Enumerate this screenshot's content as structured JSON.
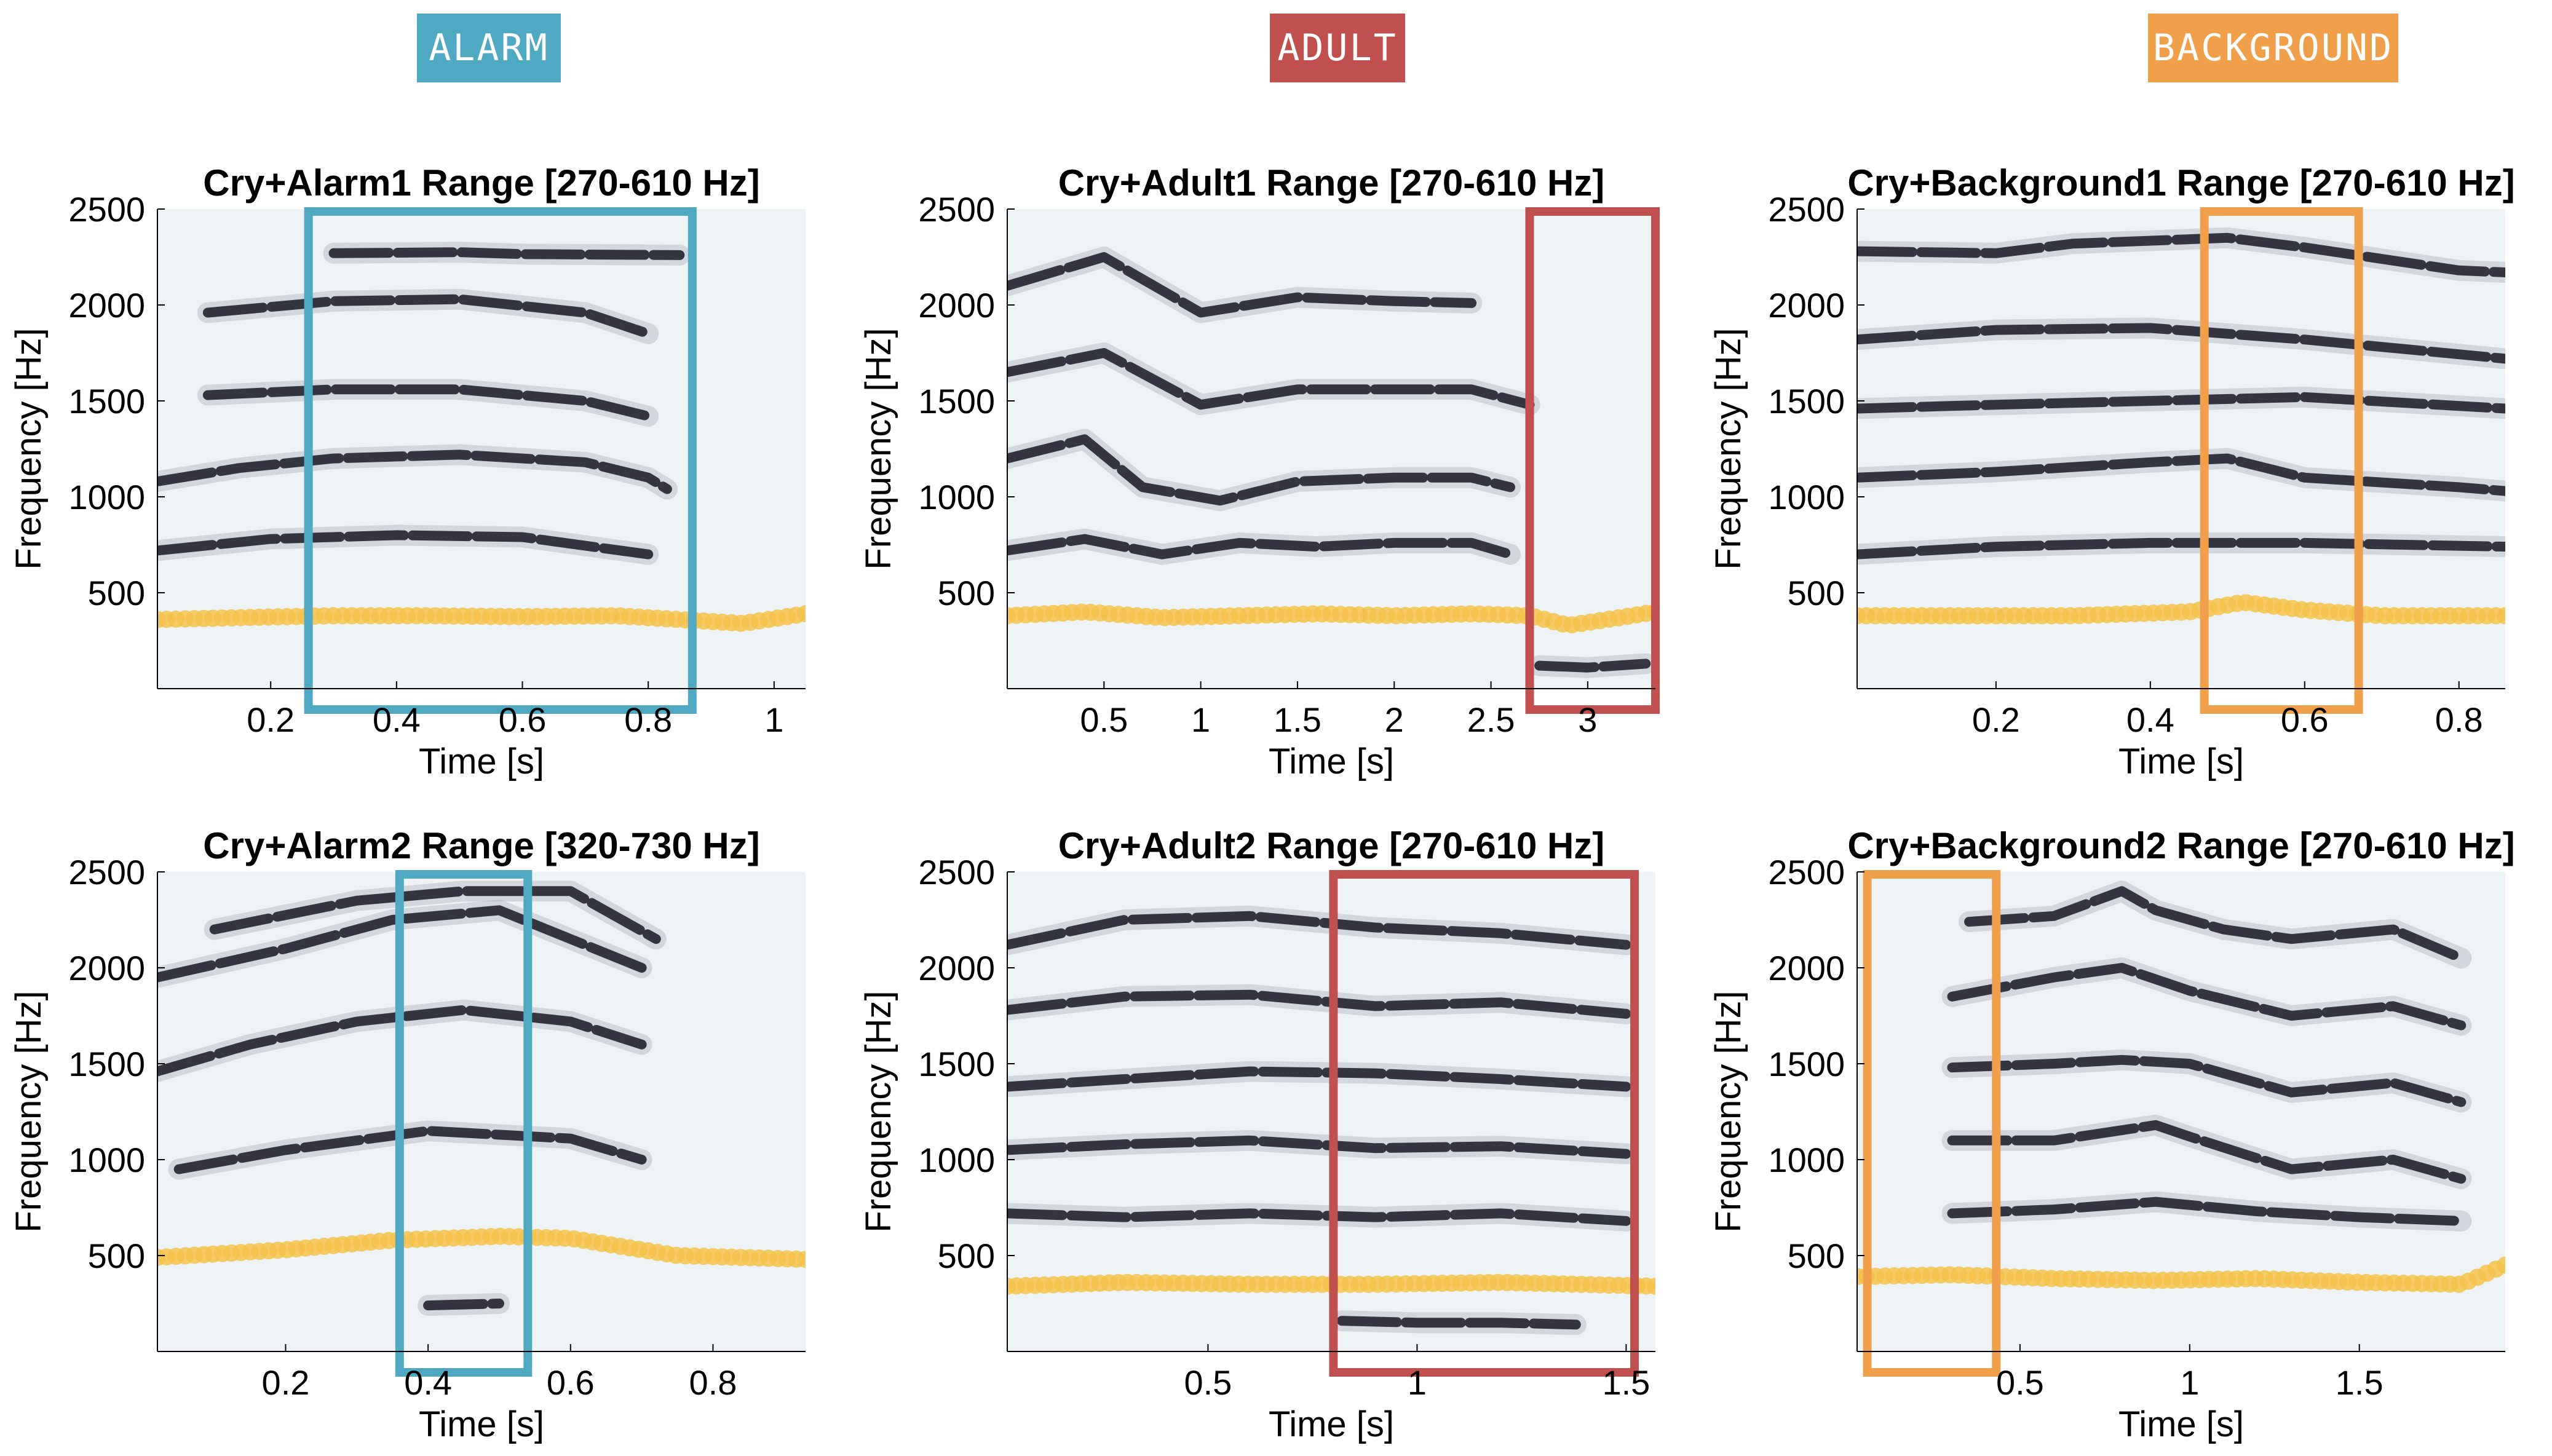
{
  "category_labels": [
    {
      "text": "ALARM",
      "color": "#4fa9c2"
    },
    {
      "text": "ADULT",
      "color": "#c0504d"
    },
    {
      "text": "BACKGROUND",
      "color": "#f0a04b"
    }
  ],
  "colors": {
    "f0_track": "#f3c24a",
    "harmonic": "#1a1826",
    "axis": "#000000"
  },
  "chart_data": [
    {
      "type": "spectrogram",
      "title": "Cry+Alarm1 Range [270-610 Hz]",
      "xlabel": "Time [s]",
      "ylabel": "Frequency [Hz]",
      "xlim": [
        0.02,
        1.05
      ],
      "ylim": [
        0,
        2500
      ],
      "xticks": [
        0.2,
        0.4,
        0.6,
        0.8,
        1
      ],
      "yticks": [
        500,
        1000,
        1500,
        2000,
        2500
      ],
      "highlight": {
        "category": "ALARM",
        "x_range": [
          0.26,
          0.87
        ],
        "color": "#4fa9c2"
      },
      "f0_track": {
        "x": [
          0.02,
          0.15,
          0.3,
          0.45,
          0.6,
          0.75,
          0.85,
          0.95,
          1.05
        ],
        "y": [
          360,
          370,
          380,
          380,
          375,
          380,
          360,
          340,
          390
        ]
      },
      "harmonics": [
        {
          "x": [
            0.02,
            0.2,
            0.4,
            0.6,
            0.8
          ],
          "y": [
            720,
            780,
            800,
            790,
            700
          ]
        },
        {
          "x": [
            0.02,
            0.15,
            0.3,
            0.5,
            0.7,
            0.8,
            0.83
          ],
          "y": [
            1080,
            1150,
            1200,
            1220,
            1180,
            1100,
            1040
          ]
        },
        {
          "x": [
            0.1,
            0.3,
            0.5,
            0.7,
            0.8
          ],
          "y": [
            1530,
            1560,
            1560,
            1500,
            1420
          ]
        },
        {
          "x": [
            0.1,
            0.3,
            0.5,
            0.7,
            0.8
          ],
          "y": [
            1960,
            2020,
            2030,
            1960,
            1850
          ]
        },
        {
          "x": [
            0.3,
            0.5,
            0.6,
            0.85
          ],
          "y": [
            2270,
            2275,
            2265,
            2260
          ]
        }
      ]
    },
    {
      "type": "spectrogram",
      "title": "Cry+Adult1 Range [270-610 Hz]",
      "xlabel": "Time [s]",
      "ylabel": "Frequency [Hz]",
      "xlim": [
        0.0,
        3.35
      ],
      "ylim": [
        0,
        2500
      ],
      "xticks": [
        0.5,
        1,
        1.5,
        2,
        2.5,
        3
      ],
      "yticks": [
        500,
        1000,
        1500,
        2000,
        2500
      ],
      "highlight": {
        "category": "ADULT",
        "x_range": [
          2.7,
          3.35
        ],
        "color": "#c0504d"
      },
      "f0_track": {
        "x": [
          0,
          0.4,
          0.8,
          1.2,
          1.6,
          2.0,
          2.4,
          2.7,
          2.9,
          3.1,
          3.35
        ],
        "y": [
          380,
          400,
          370,
          380,
          390,
          380,
          390,
          380,
          330,
          360,
          400
        ]
      },
      "harmonics": [
        {
          "x": [
            0,
            0.4,
            0.8,
            1.2,
            1.6,
            2.0,
            2.4,
            2.6
          ],
          "y": [
            720,
            780,
            700,
            760,
            740,
            760,
            760,
            700
          ]
        },
        {
          "x": [
            0,
            0.4,
            0.7,
            1.1,
            1.5,
            2.0,
            2.4,
            2.6
          ],
          "y": [
            1200,
            1300,
            1050,
            980,
            1080,
            1100,
            1100,
            1050
          ]
        },
        {
          "x": [
            0,
            0.5,
            1.0,
            1.5,
            2.0,
            2.4,
            2.7
          ],
          "y": [
            1650,
            1750,
            1480,
            1560,
            1560,
            1560,
            1480
          ]
        },
        {
          "x": [
            0,
            0.5,
            1.0,
            1.5,
            2.0,
            2.4
          ],
          "y": [
            2100,
            2250,
            1960,
            2040,
            2020,
            2010
          ]
        },
        {
          "x": [
            2.75,
            3.0,
            3.3
          ],
          "y": [
            120,
            110,
            130
          ]
        }
      ]
    },
    {
      "type": "spectrogram",
      "title": "Cry+Background1 Range [270-610 Hz]",
      "xlabel": "Time [s]",
      "ylabel": "Frequency [Hz]",
      "xlim": [
        0.02,
        0.86
      ],
      "ylim": [
        0,
        2500
      ],
      "xticks": [
        0.2,
        0.4,
        0.6,
        0.8
      ],
      "yticks": [
        500,
        1000,
        1500,
        2000,
        2500
      ],
      "highlight": {
        "category": "BACKGROUND",
        "x_range": [
          0.47,
          0.67
        ],
        "color": "#f0a04b"
      },
      "f0_track": {
        "x": [
          0.02,
          0.15,
          0.3,
          0.45,
          0.52,
          0.6,
          0.7,
          0.86
        ],
        "y": [
          380,
          380,
          380,
          400,
          450,
          410,
          380,
          380
        ]
      },
      "harmonics": [
        {
          "x": [
            0.02,
            0.2,
            0.4,
            0.6,
            0.86
          ],
          "y": [
            700,
            740,
            760,
            760,
            740
          ]
        },
        {
          "x": [
            0.02,
            0.2,
            0.4,
            0.5,
            0.6,
            0.8,
            0.86
          ],
          "y": [
            1100,
            1130,
            1180,
            1200,
            1100,
            1050,
            1030
          ]
        },
        {
          "x": [
            0.02,
            0.2,
            0.4,
            0.6,
            0.86
          ],
          "y": [
            1460,
            1480,
            1500,
            1520,
            1460
          ]
        },
        {
          "x": [
            0.02,
            0.2,
            0.4,
            0.6,
            0.86
          ],
          "y": [
            1820,
            1870,
            1880,
            1820,
            1720
          ]
        },
        {
          "x": [
            0.02,
            0.2,
            0.3,
            0.5,
            0.6,
            0.8,
            0.86
          ],
          "y": [
            2280,
            2270,
            2320,
            2350,
            2300,
            2180,
            2170
          ]
        }
      ]
    },
    {
      "type": "spectrogram",
      "title": "Cry+Alarm2 Range [320-730 Hz]",
      "xlabel": "Time [s]",
      "ylabel": "Frequency [Hz]",
      "xlim": [
        0.02,
        0.93
      ],
      "ylim": [
        0,
        2500
      ],
      "xticks": [
        0.2,
        0.4,
        0.6,
        0.8
      ],
      "yticks": [
        500,
        1000,
        1500,
        2000,
        2500
      ],
      "highlight": {
        "category": "ALARM",
        "x_range": [
          0.36,
          0.54
        ],
        "color": "#4fa9c2"
      },
      "f0_track": {
        "x": [
          0.02,
          0.2,
          0.35,
          0.5,
          0.6,
          0.75,
          0.93
        ],
        "y": [
          490,
          530,
          580,
          600,
          590,
          500,
          480
        ]
      },
      "harmonics": [
        {
          "x": [
            0.05,
            0.2,
            0.4,
            0.6,
            0.7
          ],
          "y": [
            950,
            1050,
            1150,
            1110,
            1000
          ]
        },
        {
          "x": [
            0.02,
            0.15,
            0.3,
            0.45,
            0.6,
            0.7
          ],
          "y": [
            1460,
            1600,
            1720,
            1780,
            1720,
            1600
          ]
        },
        {
          "x": [
            0.02,
            0.2,
            0.35,
            0.5,
            0.6,
            0.7
          ],
          "y": [
            1950,
            2100,
            2250,
            2300,
            2150,
            2000
          ]
        },
        {
          "x": [
            0.1,
            0.3,
            0.45,
            0.6,
            0.72
          ],
          "y": [
            2200,
            2350,
            2400,
            2400,
            2150
          ]
        },
        {
          "x": [
            0.4,
            0.5
          ],
          "y": [
            240,
            250
          ]
        }
      ]
    },
    {
      "type": "spectrogram",
      "title": "Cry+Adult2 Range [270-610 Hz]",
      "xlabel": "Time [s]",
      "ylabel": "Frequency [Hz]",
      "xlim": [
        0.02,
        1.57
      ],
      "ylim": [
        0,
        2500
      ],
      "xticks": [
        0.5,
        1,
        1.5
      ],
      "yticks": [
        500,
        1000,
        1500,
        2000,
        2500
      ],
      "highlight": {
        "category": "ADULT",
        "x_range": [
          0.8,
          1.52
        ],
        "color": "#c0504d"
      },
      "f0_track": {
        "x": [
          0.02,
          0.3,
          0.6,
          0.9,
          1.2,
          1.57
        ],
        "y": [
          340,
          360,
          350,
          350,
          360,
          340
        ]
      },
      "harmonics": [
        {
          "x": [
            0.02,
            0.3,
            0.6,
            0.9,
            1.2,
            1.5
          ],
          "y": [
            720,
            700,
            720,
            700,
            720,
            680
          ]
        },
        {
          "x": [
            0.02,
            0.3,
            0.6,
            0.9,
            1.2,
            1.5
          ],
          "y": [
            1050,
            1080,
            1100,
            1060,
            1070,
            1030
          ]
        },
        {
          "x": [
            0.02,
            0.3,
            0.6,
            0.9,
            1.2,
            1.5
          ],
          "y": [
            1380,
            1420,
            1460,
            1450,
            1420,
            1380
          ]
        },
        {
          "x": [
            0.02,
            0.3,
            0.6,
            0.9,
            1.2,
            1.5
          ],
          "y": [
            1780,
            1850,
            1860,
            1800,
            1820,
            1760
          ]
        },
        {
          "x": [
            0.02,
            0.3,
            0.6,
            0.9,
            1.2,
            1.5
          ],
          "y": [
            2120,
            2250,
            2270,
            2210,
            2180,
            2120
          ]
        },
        {
          "x": [
            0.82,
            1.0,
            1.2,
            1.38
          ],
          "y": [
            160,
            150,
            150,
            140
          ]
        }
      ]
    },
    {
      "type": "spectrogram",
      "title": "Cry+Background2 Range [270-610 Hz]",
      "xlabel": "Time [s]",
      "ylabel": "Frequency [Hz]",
      "xlim": [
        0.02,
        1.93
      ],
      "ylim": [
        0,
        2500
      ],
      "xticks": [
        0.5,
        1,
        1.5
      ],
      "yticks": [
        500,
        1000,
        1500,
        2000,
        2500
      ],
      "highlight": {
        "category": "BACKGROUND",
        "x_range": [
          0.05,
          0.43
        ],
        "color": "#f0a04b"
      },
      "f0_track": {
        "x": [
          0.02,
          0.3,
          0.6,
          0.9,
          1.2,
          1.5,
          1.8,
          1.93
        ],
        "y": [
          390,
          400,
          380,
          370,
          380,
          360,
          350,
          450
        ]
      },
      "harmonics": [
        {
          "x": [
            0.3,
            0.6,
            0.9,
            1.2,
            1.5,
            1.8
          ],
          "y": [
            720,
            740,
            780,
            730,
            700,
            680
          ]
        },
        {
          "x": [
            0.3,
            0.6,
            0.9,
            1.0,
            1.3,
            1.6,
            1.8
          ],
          "y": [
            1100,
            1100,
            1180,
            1120,
            950,
            1000,
            900
          ]
        },
        {
          "x": [
            0.3,
            0.6,
            0.8,
            1.0,
            1.3,
            1.6,
            1.8
          ],
          "y": [
            1480,
            1500,
            1520,
            1500,
            1350,
            1400,
            1300
          ]
        },
        {
          "x": [
            0.3,
            0.6,
            0.8,
            1.0,
            1.3,
            1.6,
            1.8
          ],
          "y": [
            1850,
            1950,
            2000,
            1880,
            1750,
            1800,
            1700
          ]
        },
        {
          "x": [
            0.35,
            0.6,
            0.8,
            0.9,
            1.1,
            1.3,
            1.6,
            1.8
          ],
          "y": [
            2240,
            2270,
            2400,
            2300,
            2200,
            2150,
            2200,
            2050
          ]
        }
      ]
    }
  ]
}
